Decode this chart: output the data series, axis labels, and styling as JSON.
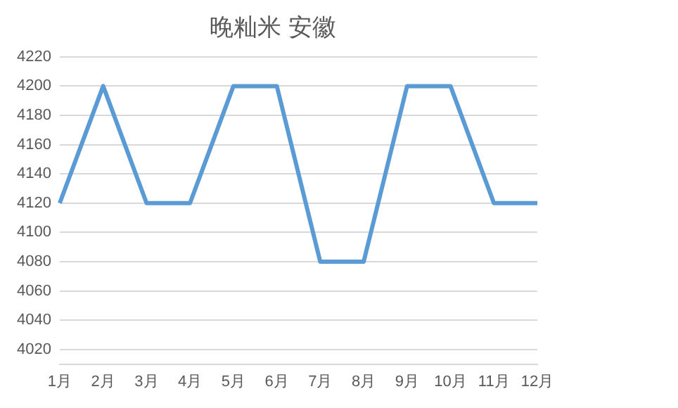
{
  "chart_data": {
    "type": "line",
    "title": "晚籼米 安徽",
    "categories": [
      "1月",
      "2月",
      "3月",
      "4月",
      "5月",
      "6月",
      "7月",
      "8月",
      "9月",
      "10月",
      "11月",
      "12月"
    ],
    "series": [
      {
        "color": "#5b9bd5",
        "values": [
          4120,
          4200,
          4120,
          4120,
          4200,
          4200,
          4080,
          4080,
          4200,
          4200,
          4120,
          4120
        ]
      }
    ],
    "ylim": [
      4010,
      4220
    ],
    "yticks": [
      4020,
      4040,
      4060,
      4080,
      4100,
      4120,
      4140,
      4160,
      4180,
      4200,
      4220
    ],
    "grid": "y"
  }
}
